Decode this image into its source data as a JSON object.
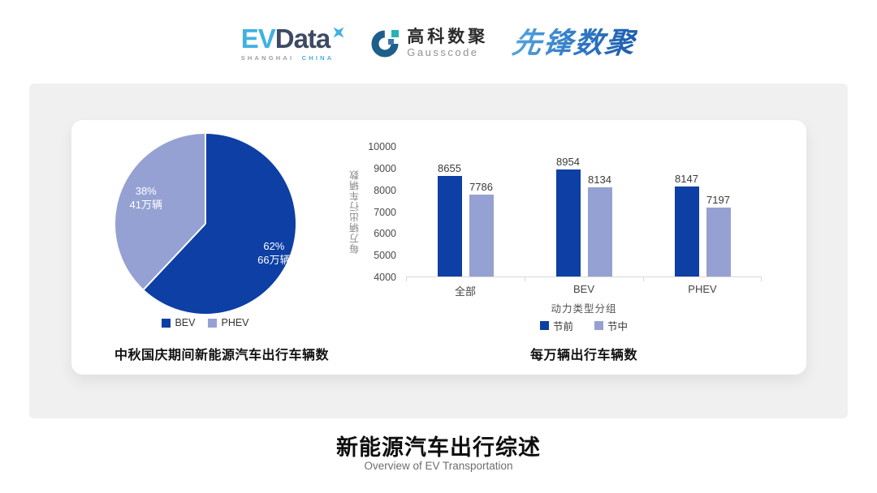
{
  "header": {
    "evdata_logo": {
      "part1": "EV",
      "part2": "Data",
      "sub_left": "SHANGHAI",
      "sub_right": "CHINA"
    },
    "gausscode_logo": {
      "name_cn": "高科数聚",
      "name_en": "Gausscode"
    },
    "pioneer_logo": {
      "text": "先锋数聚"
    }
  },
  "colors": {
    "series_dark": "#0d3fa4",
    "series_light": "#96a1d3",
    "evdata_blue": "#41b1e1",
    "evdata_slate": "#3d4a63",
    "gausscode_navy": "#1d5f8a",
    "gausscode_teal": "#26b3b3",
    "panel_gray": "#f0f0f1"
  },
  "chart_data": [
    {
      "type": "pie",
      "title": "中秋国庆期间新能源汽车出行车辆数",
      "start_angle_deg": 0,
      "slices": [
        {
          "label": "BEV",
          "pct": 62,
          "pct_label": "62%",
          "value_label": "66万辆",
          "color": "#0d3fa4"
        },
        {
          "label": "PHEV",
          "pct": 38,
          "pct_label": "38%",
          "value_label": "41万辆",
          "color": "#96a1d3"
        }
      ],
      "legend_position": "bottom"
    },
    {
      "type": "bar",
      "title": "每万辆出行车辆数",
      "categories": [
        "全部",
        "BEV",
        "PHEV"
      ],
      "series": [
        {
          "name": "节前",
          "color": "#0d3fa4",
          "values": [
            8655,
            8954,
            8147
          ]
        },
        {
          "name": "节中",
          "color": "#96a1d3",
          "values": [
            7786,
            8134,
            7197
          ]
        }
      ],
      "xlabel": "动力类型分组",
      "ylabel": "每万辆出行车辆数",
      "ylim": [
        4000,
        10000
      ],
      "yticks": [
        10000,
        9000,
        8000,
        7000,
        6000,
        5000,
        4000
      ],
      "grid": false,
      "legend_position": "bottom"
    }
  ],
  "footer": {
    "title": "新能源汽车出行综述",
    "subtitle": "Overview of EV Transportation"
  }
}
